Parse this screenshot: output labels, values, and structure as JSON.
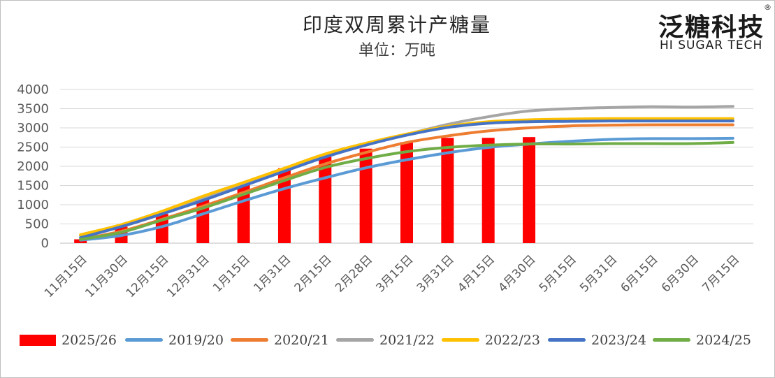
{
  "header": {
    "title": "印度双周累计产糖量",
    "subtitle": "单位：万吨"
  },
  "logo": {
    "name_cn": "泛糖科技",
    "name_en": "HI SUGAR TECH",
    "registered_mark": "®"
  },
  "chart_data": {
    "type": "bar+line",
    "title": "印度双周累计产糖量",
    "subtitle": "单位：万吨",
    "ylim": [
      0,
      4000
    ],
    "yticks": [
      0,
      500,
      1000,
      1500,
      2000,
      2500,
      3000,
      3500,
      4000
    ],
    "grid": true,
    "legend_position": "bottom",
    "categories": [
      "11月15日",
      "11月30日",
      "12月15日",
      "12月31日",
      "1月15日",
      "1月31日",
      "2月15日",
      "2月28日",
      "3月15日",
      "3月31日",
      "4月15日",
      "4月30日",
      "5月15日",
      "5月31日",
      "6月15日",
      "6月30日",
      "7月15日"
    ],
    "bar_series": {
      "name": "2025/26",
      "color": "#ff0000",
      "values": [
        100,
        430,
        760,
        1150,
        1560,
        1950,
        2250,
        2460,
        2630,
        2740,
        2740,
        2760,
        null,
        null,
        null,
        null,
        null
      ]
    },
    "line_series": [
      {
        "name": "2019/20",
        "color": "#5b9bd5",
        "values": [
          80,
          200,
          430,
          760,
          1100,
          1420,
          1700,
          1960,
          2170,
          2350,
          2490,
          2580,
          2650,
          2700,
          2720,
          2720,
          2730
        ]
      },
      {
        "name": "2020/21",
        "color": "#ed7d31",
        "values": [
          100,
          310,
          620,
          960,
          1320,
          1700,
          2060,
          2360,
          2620,
          2790,
          2920,
          3000,
          3050,
          3070,
          3080,
          3080,
          3080
        ]
      },
      {
        "name": "2021/22",
        "color": "#a5a5a5",
        "values": [
          190,
          430,
          760,
          1150,
          1530,
          1920,
          2250,
          2560,
          2830,
          3090,
          3290,
          3440,
          3500,
          3530,
          3550,
          3540,
          3560
        ]
      },
      {
        "name": "2022/23",
        "color": "#ffc000",
        "values": [
          220,
          480,
          830,
          1220,
          1580,
          1950,
          2320,
          2600,
          2840,
          3040,
          3160,
          3210,
          3230,
          3240,
          3240,
          3240,
          3240
        ]
      },
      {
        "name": "2023/24",
        "color": "#4472c4",
        "values": [
          140,
          430,
          760,
          1110,
          1490,
          1870,
          2240,
          2550,
          2810,
          3010,
          3120,
          3160,
          3170,
          3180,
          3180,
          3180,
          3180
        ]
      },
      {
        "name": "2024/25",
        "color": "#70ad47",
        "values": [
          100,
          280,
          600,
          910,
          1270,
          1630,
          1970,
          2200,
          2380,
          2490,
          2550,
          2580,
          2580,
          2590,
          2590,
          2590,
          2620
        ]
      }
    ]
  }
}
